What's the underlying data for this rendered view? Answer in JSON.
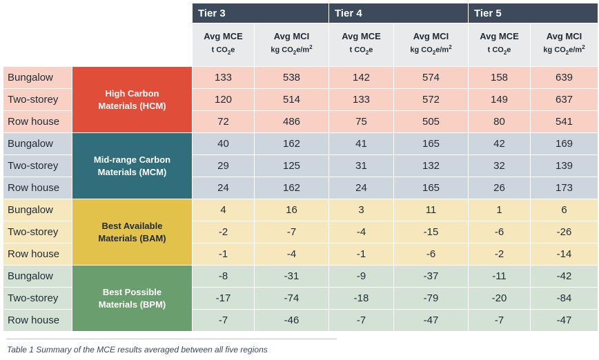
{
  "tiers": [
    "Tier 3",
    "Tier 4",
    "Tier 5"
  ],
  "sub_headers": [
    {
      "metric": "Avg MCE",
      "unit_pre": "t CO",
      "sub": "2",
      "unit_post": "e",
      "sup": ""
    },
    {
      "metric": "Avg MCI",
      "unit_pre": "kg CO",
      "sub": "2",
      "unit_post": "e/m",
      "sup": "2"
    }
  ],
  "groups": [
    {
      "name": "High Carbon Materials (HCM)",
      "line1": "High Carbon",
      "line2": "Materials (HCM)",
      "color": "#e04e3a",
      "row_bg": "#f8d0c4",
      "text_dark": false,
      "rows": [
        {
          "building": "Bungalow",
          "values": [
            "133",
            "538",
            "142",
            "574",
            "158",
            "639"
          ]
        },
        {
          "building": "Two-storey",
          "values": [
            "120",
            "514",
            "133",
            "572",
            "149",
            "637"
          ]
        },
        {
          "building": "Row house",
          "values": [
            "72",
            "486",
            "75",
            "505",
            "80",
            "541"
          ]
        }
      ]
    },
    {
      "name": "Mid-range Carbon Materials (MCM)",
      "line1": "Mid-range Carbon",
      "line2": "Materials (MCM)",
      "color": "#2f6e7a",
      "row_bg": "#cdd6df",
      "text_dark": false,
      "rows": [
        {
          "building": "Bungalow",
          "values": [
            "40",
            "162",
            "41",
            "165",
            "42",
            "169"
          ]
        },
        {
          "building": "Two-storey",
          "values": [
            "29",
            "125",
            "31",
            "132",
            "32",
            "139"
          ]
        },
        {
          "building": "Row house",
          "values": [
            "24",
            "162",
            "24",
            "165",
            "26",
            "173"
          ]
        }
      ]
    },
    {
      "name": "Best Available Materials (BAM)",
      "line1": "Best Available",
      "line2": "Materials (BAM)",
      "color": "#e2c24a",
      "row_bg": "#f6e7bd",
      "text_dark": true,
      "rows": [
        {
          "building": "Bungalow",
          "values": [
            "4",
            "16",
            "3",
            "11",
            "1",
            "6"
          ]
        },
        {
          "building": "Two-storey",
          "values": [
            "-2",
            "-7",
            "-4",
            "-15",
            "-6",
            "-26"
          ]
        },
        {
          "building": "Row house",
          "values": [
            "-1",
            "-4",
            "-1",
            "-6",
            "-2",
            "-14"
          ]
        }
      ]
    },
    {
      "name": "Best Possible Materials (BPM)",
      "line1": "Best Possible",
      "line2": "Materials (BPM)",
      "color": "#6b9e6e",
      "row_bg": "#d4e2d6",
      "text_dark": false,
      "rows": [
        {
          "building": "Bungalow",
          "values": [
            "-8",
            "-31",
            "-9",
            "-37",
            "-11",
            "-42"
          ]
        },
        {
          "building": "Two-storey",
          "values": [
            "-17",
            "-74",
            "-18",
            "-79",
            "-20",
            "-84"
          ]
        },
        {
          "building": "Row house",
          "values": [
            "-7",
            "-46",
            "-7",
            "-47",
            "-7",
            "-47"
          ]
        }
      ]
    }
  ],
  "caption": "Table 1 Summary of the MCE results averaged between all five regions"
}
